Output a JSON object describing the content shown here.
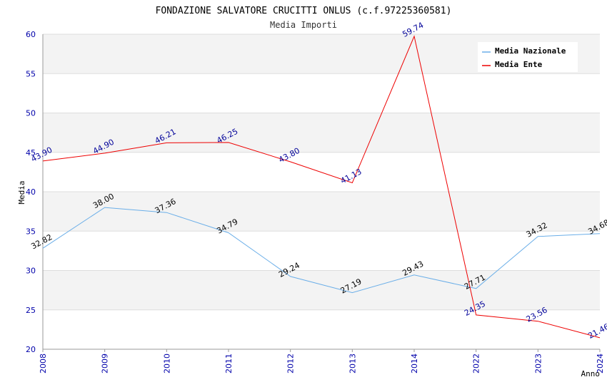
{
  "chart_data": {
    "type": "line",
    "title": "FONDAZIONE SALVATORE CRUCITTI ONLUS (c.f.97225360581)",
    "subtitle": "Media Importi",
    "xlabel": "Anno",
    "ylabel": "Media",
    "categories": [
      "2008",
      "2009",
      "2010",
      "2011",
      "2012",
      "2013",
      "2014",
      "2022",
      "2023",
      "2024"
    ],
    "ylim": [
      20,
      60
    ],
    "yticks": [
      20,
      25,
      30,
      35,
      40,
      45,
      50,
      55,
      60
    ],
    "grid": true,
    "legend_position": "top-right",
    "series": [
      {
        "name": "Media Nazionale",
        "color": "#6aaee8",
        "values": [
          32.82,
          38.0,
          37.36,
          34.79,
          29.24,
          27.19,
          29.43,
          27.71,
          34.32,
          34.68
        ],
        "labels": [
          "32.82",
          "38.00",
          "37.36",
          "34.79",
          "29.24",
          "27.19",
          "29.43",
          "27.71",
          "34.32",
          "34.68"
        ]
      },
      {
        "name": "Media Ente",
        "color": "#ee0000",
        "values": [
          43.9,
          44.9,
          46.21,
          46.25,
          43.8,
          41.13,
          59.74,
          24.35,
          23.56,
          21.46
        ],
        "labels": [
          "43.90",
          "44.90",
          "46.21",
          "46.25",
          "43.80",
          "41.13",
          "59.74",
          "24.35",
          "23.56",
          "21.46"
        ]
      }
    ]
  }
}
